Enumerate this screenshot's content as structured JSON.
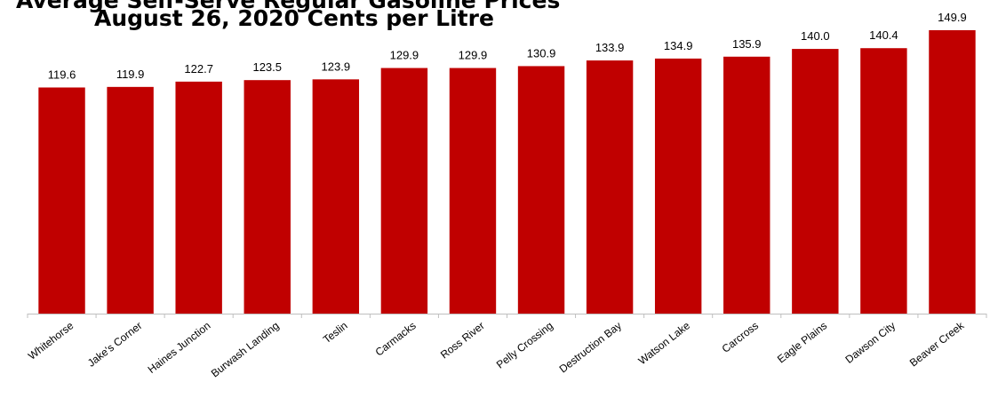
{
  "colors": {
    "bar": "#c00000",
    "axis": "#bfbfbf",
    "text": "#000000"
  },
  "chart_data": {
    "type": "bar",
    "title_lines": [
      "Average Self-Serve Regular Gasoline Prices",
      "August 26, 2020 Cents per Litre"
    ],
    "xlabel": "",
    "ylabel": "",
    "categories": [
      "Whitehorse",
      "Jake's Corner",
      "Haines Junction",
      "Burwash Landing",
      "Teslin",
      "Carmacks",
      "Ross River",
      "Pelly Crossing",
      "Destruction Bay",
      "Watson Lake",
      "Carcross",
      "Eagle Plains",
      "Dawson City",
      "Beaver Creek"
    ],
    "values": [
      119.6,
      119.9,
      122.7,
      123.5,
      123.9,
      129.9,
      129.9,
      130.9,
      133.9,
      134.9,
      135.9,
      140.0,
      140.4,
      149.9
    ],
    "value_labels": [
      "119.6",
      "119.9",
      "122.7",
      "123.5",
      "123.9",
      "129.9",
      "129.9",
      "130.9",
      "133.9",
      "134.9",
      "135.9",
      "140.0",
      "140.4",
      "149.9"
    ],
    "ylim": [
      0,
      149.9
    ],
    "grid": false,
    "legend": "none"
  }
}
